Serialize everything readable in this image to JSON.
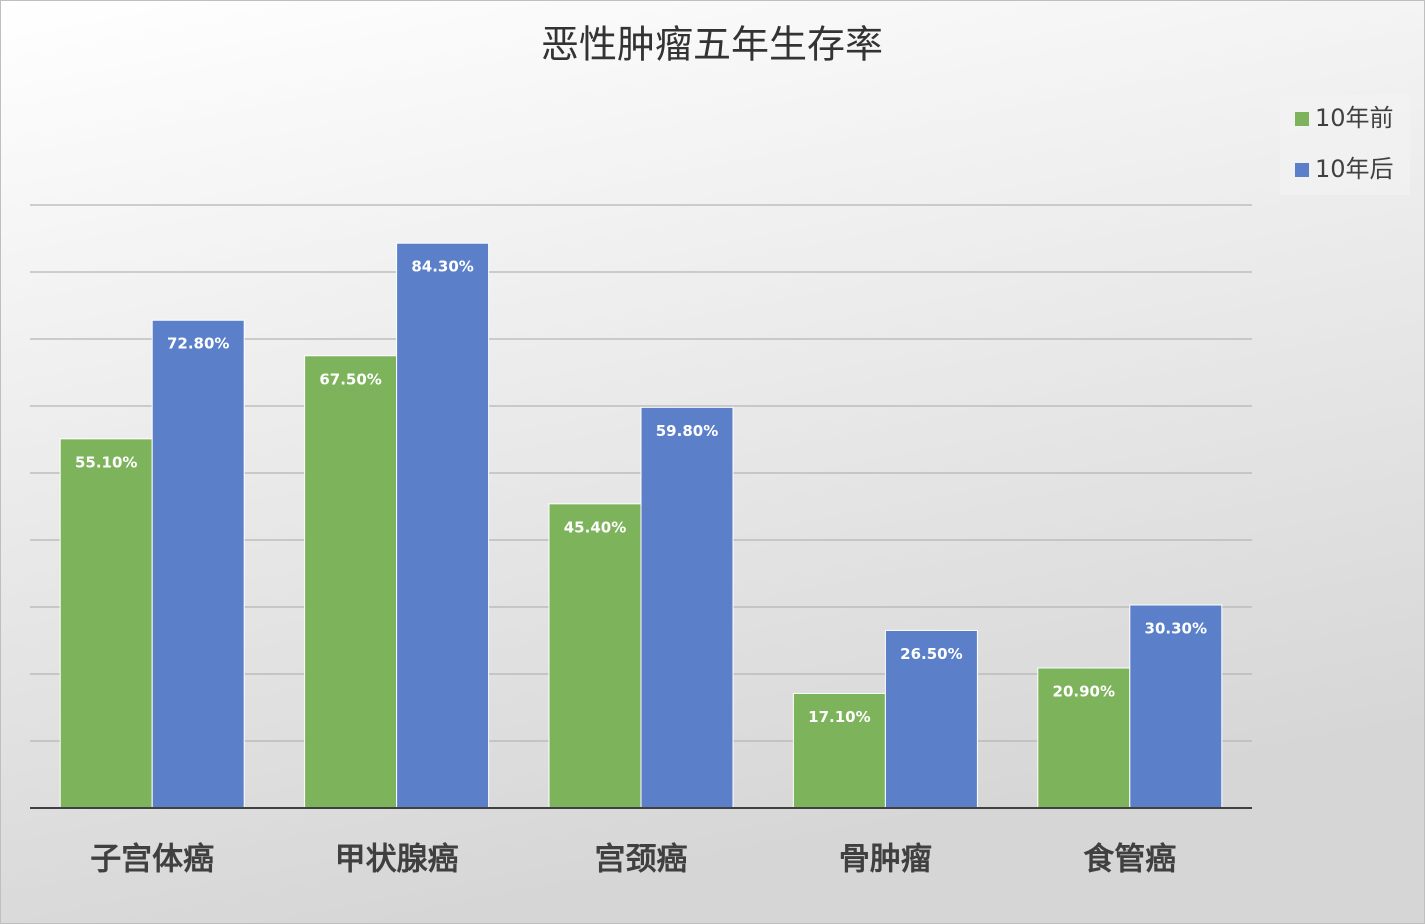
{
  "chart_data": {
    "type": "bar",
    "title": "恶性肿瘤五年生存率",
    "categories": [
      "子宫体癌",
      "甲状腺癌",
      "宫颈癌",
      "骨肿瘤",
      "食管癌"
    ],
    "series": [
      {
        "name": "10年前",
        "color": "#7db35b",
        "values": [
          55.1,
          67.5,
          45.4,
          17.1,
          20.9
        ],
        "value_labels": [
          "55.10%",
          "67.50%",
          "45.40%",
          "17.10%",
          "20.90%"
        ]
      },
      {
        "name": "10年后",
        "color": "#5b80c9",
        "values": [
          72.8,
          84.3,
          59.8,
          26.5,
          30.3
        ],
        "value_labels": [
          "72.80%",
          "84.30%",
          "59.80%",
          "26.50%",
          "30.30%"
        ]
      }
    ],
    "ylim": [
      0,
      90
    ],
    "yticks": [
      0,
      10,
      20,
      30,
      40,
      50,
      60,
      70,
      80,
      90
    ],
    "grid": true,
    "legend": "right"
  }
}
